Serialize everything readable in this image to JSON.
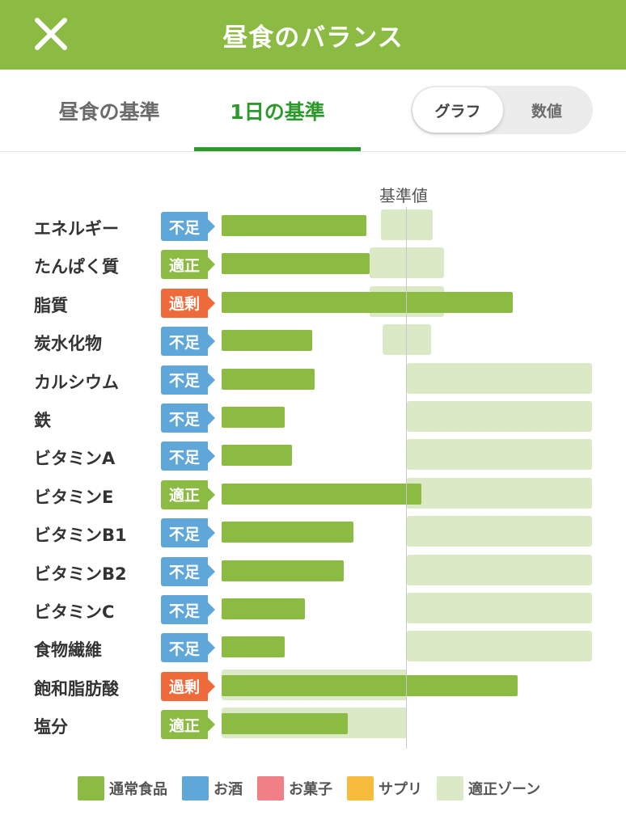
{
  "header": {
    "title": "昼食のバランス",
    "close_icon": "close-icon"
  },
  "tabs": [
    {
      "label": "昼食の基準",
      "active": false
    },
    {
      "label": "1日の基準",
      "active": true
    }
  ],
  "view_toggle": {
    "graph_label": "グラフ",
    "numeric_label": "数値",
    "selected": "グラフ"
  },
  "chart_data": {
    "type": "bar",
    "reference_label": "基準値",
    "categories": [
      "エネルギー",
      "たんぱく質",
      "脂質",
      "炭水化物",
      "カルシウム",
      "鉄",
      "ビタミンA",
      "ビタミンE",
      "ビタミンB1",
      "ビタミンB2",
      "ビタミンC",
      "食物繊維",
      "飽和脂肪酸",
      "塩分"
    ],
    "statuses": [
      "不足",
      "適正",
      "過剰",
      "不足",
      "不足",
      "不足",
      "不足",
      "適正",
      "不足",
      "不足",
      "不足",
      "不足",
      "過剰",
      "適正"
    ],
    "values_percent_of_reference": [
      78,
      80,
      157,
      49,
      50,
      34,
      38,
      108,
      71,
      66,
      45,
      34,
      160,
      68
    ],
    "appropriate_zone_percent": [
      [
        86,
        114
      ],
      [
        80,
        120
      ],
      [
        80,
        120
      ],
      [
        87,
        113
      ],
      [
        100,
        200
      ],
      [
        100,
        200
      ],
      [
        100,
        200
      ],
      [
        100,
        200
      ],
      [
        100,
        200
      ],
      [
        100,
        200
      ],
      [
        100,
        200
      ],
      [
        100,
        200
      ],
      [
        0,
        100
      ],
      [
        0,
        100
      ]
    ],
    "legend": [
      {
        "label": "通常食品",
        "color": "#8bbb43"
      },
      {
        "label": "お酒",
        "color": "#5fa7d9"
      },
      {
        "label": "お菓子",
        "color": "#f07f86"
      },
      {
        "label": "サプリ",
        "color": "#f7bc3c"
      },
      {
        "label": "適正ゾーン",
        "color": "#dce9c6"
      }
    ]
  },
  "status_colors": {
    "不足": "#5fa7d9",
    "適正": "#8bbb43",
    "過剰": "#ee6a3a"
  }
}
